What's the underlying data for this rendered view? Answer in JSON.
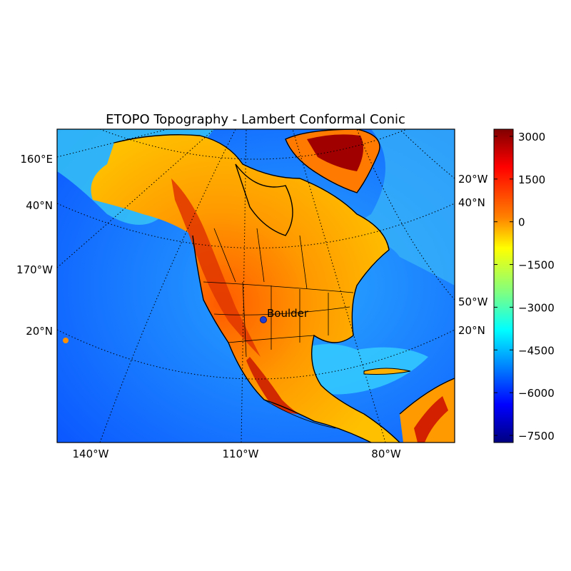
{
  "title": "ETOPO Topography - Lambert Conformal Conic",
  "lat_labels_left": [
    "160°E",
    "40°N",
    "170°W",
    "20°N"
  ],
  "lat_labels_right": [
    "20°W",
    "40°N",
    "50°W",
    "20°N"
  ],
  "lon_labels_bottom": [
    "140°W",
    "110°W",
    "80°W"
  ],
  "marker": {
    "label": "Boulder",
    "color": "#1f3fd0"
  },
  "colorbar": {
    "ticks": [
      "3000",
      "1500",
      "0",
      "−1500",
      "−3000",
      "−4500",
      "−6000",
      "−7500"
    ],
    "min": -7750,
    "max": 3250,
    "colormap": "jet"
  },
  "colors": {
    "ocean_deep": "#0a4cff",
    "ocean_mid": "#1a8cff",
    "shelf": "#30d8f0",
    "lowland": "#ffb000",
    "highland": "#e03a00",
    "peak": "#8b0000"
  }
}
